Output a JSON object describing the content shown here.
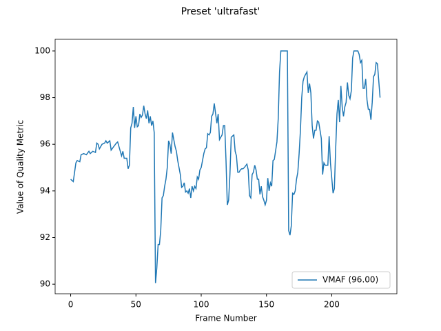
{
  "chart_data": {
    "type": "line",
    "title": "Preset 'ultrafast'",
    "x_label": "Frame Number",
    "y_label": "Value of Quality Metric",
    "xlim": [
      -11.9,
      249.9
    ],
    "ylim": [
      89.59,
      100.5
    ],
    "xticks": [
      0,
      50,
      100,
      150,
      200
    ],
    "yticks": [
      90,
      92,
      94,
      96,
      98,
      100
    ],
    "legend": "lower right",
    "x": [
      0,
      2,
      3,
      4,
      5,
      7,
      8,
      10,
      12,
      14,
      15,
      17,
      19,
      20,
      21,
      22,
      24,
      26,
      27,
      28,
      30,
      31,
      33,
      35,
      36,
      38,
      39,
      40,
      41,
      43,
      44,
      45,
      46,
      47,
      48,
      49,
      50,
      51,
      52,
      53,
      54,
      55,
      56,
      57,
      58,
      59,
      60,
      61,
      62,
      63,
      64,
      65,
      66,
      67,
      68,
      69,
      70,
      71,
      72,
      73,
      74,
      75,
      76,
      77,
      78,
      79,
      80,
      81,
      82,
      83,
      84,
      85,
      86,
      87,
      88,
      89,
      90,
      91,
      92,
      93,
      94,
      95,
      96,
      97,
      98,
      99,
      100,
      101,
      102,
      103,
      104,
      105,
      106,
      107,
      108,
      109,
      110,
      112,
      113,
      114,
      115,
      116,
      117,
      118,
      119,
      120,
      121,
      122,
      123,
      124,
      125,
      126,
      127,
      128,
      129,
      130,
      131,
      132,
      133,
      135,
      136,
      137,
      138,
      139,
      140,
      141,
      142,
      143,
      144,
      145,
      146,
      147,
      148,
      149,
      150,
      151,
      152,
      153,
      154,
      155,
      156,
      158,
      159,
      160,
      161,
      166,
      167,
      168,
      169,
      170,
      171,
      172,
      173,
      174,
      175,
      176,
      177,
      178,
      179,
      181,
      182,
      183,
      184,
      185,
      186,
      187,
      188,
      189,
      190,
      191,
      192,
      193,
      194,
      195,
      196,
      197,
      198,
      199,
      201,
      202,
      203,
      204,
      205,
      206,
      207,
      208,
      209,
      210,
      211,
      212,
      213,
      214,
      215,
      216,
      217,
      220,
      221,
      222,
      223,
      224,
      225,
      226,
      227,
      228,
      229,
      230,
      231,
      232,
      233,
      234,
      235,
      237
    ],
    "series": [
      {
        "name": "VMAF (96.00)",
        "color": "#1f77b4",
        "values": [
          94.5,
          94.4,
          94.8,
          95.2,
          95.3,
          95.25,
          95.55,
          95.6,
          95.55,
          95.7,
          95.6,
          95.7,
          95.65,
          96.05,
          96.0,
          95.8,
          96.0,
          96.05,
          96.15,
          96.05,
          96.15,
          95.75,
          95.9,
          96.05,
          96.1,
          95.7,
          95.5,
          95.7,
          95.4,
          95.4,
          94.95,
          95.1,
          96.7,
          96.9,
          97.6,
          96.7,
          97.2,
          96.75,
          96.8,
          97.3,
          97.15,
          97.25,
          97.65,
          97.3,
          97.1,
          97.45,
          96.9,
          97.2,
          96.8,
          97.0,
          96.5,
          90.05,
          90.7,
          91.7,
          91.7,
          92.3,
          93.7,
          93.8,
          94.2,
          94.5,
          95.0,
          96.15,
          96.0,
          95.6,
          96.5,
          96.2,
          95.9,
          95.7,
          95.3,
          95.0,
          94.7,
          94.15,
          94.2,
          94.35,
          93.95,
          94.0,
          93.9,
          94.1,
          93.7,
          94.2,
          94.0,
          94.2,
          94.1,
          94.6,
          94.5,
          94.9,
          95.0,
          95.3,
          95.6,
          95.8,
          95.85,
          96.45,
          96.4,
          96.5,
          97.2,
          97.3,
          97.75,
          96.9,
          97.3,
          96.2,
          96.3,
          96.4,
          96.8,
          96.8,
          95.3,
          93.4,
          93.6,
          94.7,
          96.3,
          96.35,
          96.4,
          95.7,
          95.5,
          94.8,
          94.8,
          94.9,
          94.95,
          94.95,
          95.0,
          95.15,
          94.9,
          93.8,
          93.7,
          94.7,
          94.8,
          95.1,
          94.9,
          94.5,
          94.5,
          93.85,
          94.2,
          93.75,
          93.6,
          93.4,
          93.6,
          94.55,
          94.0,
          94.35,
          94.2,
          95.3,
          95.35,
          96.1,
          97.1,
          99.1,
          100,
          100,
          92.3,
          92.1,
          92.5,
          93.9,
          93.85,
          94.0,
          94.5,
          94.8,
          95.6,
          96.6,
          98.0,
          98.7,
          98.9,
          99.1,
          98.2,
          98.6,
          98.2,
          96.8,
          96.25,
          96.6,
          96.6,
          97.0,
          96.95,
          96.6,
          96.25,
          94.7,
          95.2,
          95.1,
          95.1,
          95.1,
          96.35,
          95.2,
          93.9,
          94.1,
          95.8,
          97.3,
          97.9,
          96.95,
          98.5,
          97.6,
          97.2,
          97.6,
          97.8,
          98.65,
          98.1,
          97.95,
          98.3,
          99.7,
          100,
          100,
          99.85,
          99.5,
          99.6,
          98.4,
          98.4,
          98.8,
          97.9,
          97.5,
          97.5,
          97.05,
          97.8,
          98.9,
          99.0,
          99.5,
          99.45,
          98.0
        ]
      }
    ]
  }
}
